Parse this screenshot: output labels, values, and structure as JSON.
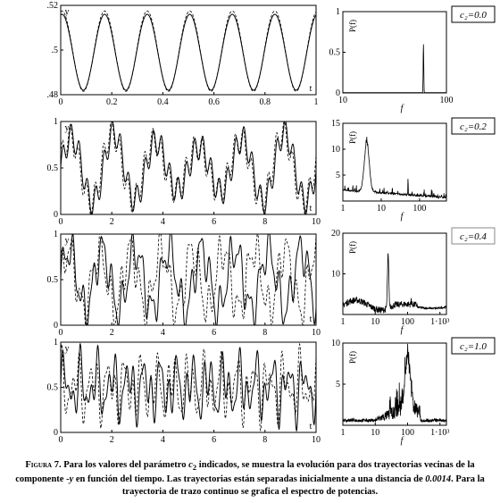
{
  "chart_data": [
    {
      "type": "line",
      "ylabel": "y",
      "xlabel": "t",
      "xlim": [
        0,
        1
      ],
      "ylim": [
        0.48,
        0.52
      ],
      "xticks": [
        "0",
        "0.2",
        "0.4",
        "0.6",
        "0.8",
        "1"
      ],
      "yticks": [
        ".52",
        ".5",
        ".48"
      ],
      "periods": 6,
      "series": [
        {
          "style": "solid",
          "amplitude": 0.017,
          "center": 0.499
        },
        {
          "style": "dashed",
          "amplitude": 0.018,
          "center": 0.4995
        }
      ]
    },
    {
      "type": "line",
      "xlabel": "f",
      "ylabel": "P(f)",
      "xscale": "log",
      "xticks": [
        "10",
        "100"
      ],
      "yticks": [
        "1",
        "0.5",
        "0"
      ],
      "annotation": "c₂=0.0",
      "peak": {
        "f": 60,
        "P": 0.6
      }
    },
    {
      "type": "line",
      "ylabel": "y",
      "xlabel": "t",
      "xlim": [
        0,
        10
      ],
      "ylim": [
        0,
        1
      ],
      "xticks": [
        "0",
        "2",
        "4",
        "6",
        "8",
        "10"
      ],
      "yticks": [
        "1",
        "0.5",
        "0"
      ],
      "series": [
        {
          "style": "solid"
        },
        {
          "style": "dashed"
        }
      ]
    },
    {
      "type": "line",
      "xlabel": "f",
      "ylabel": "P(f)",
      "xscale": "log",
      "xticks": [
        "1",
        "10",
        "100"
      ],
      "yticks": [
        "15",
        "10",
        "5"
      ],
      "annotation": "c₂=0.2",
      "peaks": [
        {
          "f": 4.2,
          "P": 9.5
        },
        {
          "f": 50,
          "P": 3.5
        }
      ]
    },
    {
      "type": "line",
      "ylabel": "y",
      "xlabel": "t",
      "xlim": [
        0,
        10
      ],
      "ylim": [
        0,
        1
      ],
      "xticks": [
        "0",
        "2",
        "4",
        "6",
        "8",
        "10"
      ],
      "yticks": [
        "1",
        "0.5",
        "0"
      ],
      "series": [
        {
          "style": "solid"
        },
        {
          "style": "dashed"
        }
      ]
    },
    {
      "type": "line",
      "xlabel": "f",
      "ylabel": "P(f)",
      "xscale": "log",
      "xticks": [
        "1",
        "10",
        "100",
        "1·10³"
      ],
      "yticks": [
        "20",
        "10"
      ],
      "annotation": "c₂=0.4",
      "peaks": [
        {
          "f": 25,
          "P": 13
        },
        {
          "f": 130,
          "P": 2.5
        }
      ]
    },
    {
      "type": "line",
      "ylabel": "y",
      "xlabel": "t",
      "xlim": [
        0,
        10
      ],
      "ylim": [
        0,
        1
      ],
      "xticks": [
        "0",
        "2",
        "4",
        "6",
        "8",
        "10"
      ],
      "yticks": [
        "1",
        "0.5",
        "0"
      ],
      "series": [
        {
          "style": "solid"
        },
        {
          "style": "dashed"
        }
      ]
    },
    {
      "type": "line",
      "xlabel": "f",
      "ylabel": "P(f)",
      "xscale": "log",
      "xticks": [
        "1",
        "10",
        "100",
        "1·10³"
      ],
      "yticks": [
        "10",
        "5"
      ],
      "annotation": "c₂=1.0",
      "peaks": [
        {
          "f": 100,
          "P": 6
        }
      ]
    }
  ],
  "caption": {
    "label": "Figura 7.",
    "text_1": " Para los valores del parámetro ",
    "param": "c",
    "param_sub": "2",
    "text_2": " indicados, se muestra la evolución para dos trayectorias vecinas de la componente -",
    "var": "y",
    "text_3": " en función del tiempo. Las trayectorias están separadas inicialmente a una distancia de ",
    "distance": "0.0014",
    "text_4": ". Para la trayectoria de trazo continuo se grafica el espectro de potencias."
  }
}
